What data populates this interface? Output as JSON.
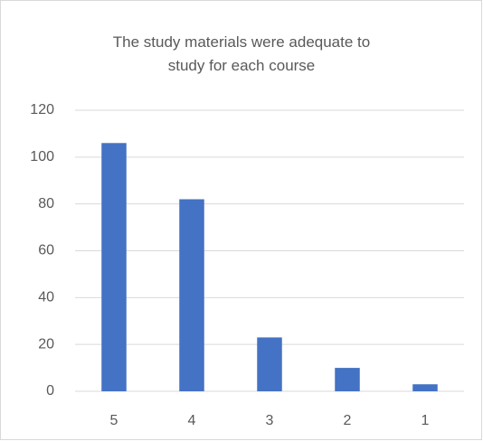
{
  "chart_data": {
    "type": "bar",
    "title": "The study materials were adequate to study for each course",
    "categories": [
      "5",
      "4",
      "3",
      "2",
      "1"
    ],
    "values": [
      106,
      82,
      23,
      10,
      3
    ],
    "color": "#4472c4",
    "ylim": [
      0,
      120
    ],
    "yticks": [
      0,
      20,
      40,
      60,
      80,
      100,
      120
    ],
    "grid": true
  }
}
